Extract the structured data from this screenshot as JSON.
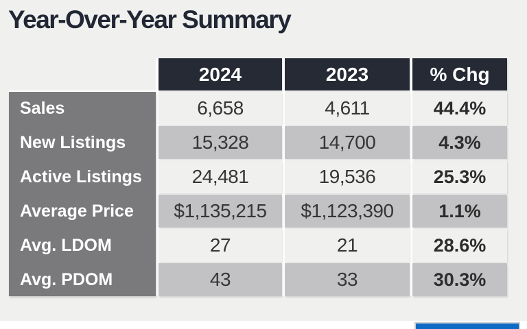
{
  "title": "Year-Over-Year Summary",
  "colors": {
    "page_background": "#ffffff",
    "slide_background": "#f0f0ef",
    "title_text": "#212734",
    "header_background": "#262a35",
    "header_text": "#ffffff",
    "label_background": "#7a797c",
    "label_text": "#ffffff",
    "row_light": "#f0f0ef",
    "row_silver": "#c2c1c3",
    "value_text": "#363636",
    "pct_text": "#2d2d2d",
    "accent_bar": "#0e6bc5"
  },
  "table": {
    "column_headers": [
      "2024",
      "2023",
      "% Chg"
    ],
    "rows": [
      {
        "label": "Sales",
        "values": [
          "6,658",
          "4,611",
          "44.4%"
        ]
      },
      {
        "label": "New Listings",
        "values": [
          "15,328",
          "14,700",
          "4.3%"
        ]
      },
      {
        "label": "Active Listings",
        "values": [
          "24,481",
          "19,536",
          "25.3%"
        ]
      },
      {
        "label": "Average Price",
        "values": [
          "$1,135,215",
          "$1,123,390",
          "1.1%"
        ]
      },
      {
        "label": "Avg. LDOM",
        "values": [
          "27",
          "21",
          "28.6%"
        ]
      },
      {
        "label": "Avg. PDOM",
        "values": [
          "43",
          "33",
          "30.3%"
        ]
      }
    ]
  },
  "chart_data": {
    "type": "table",
    "title": "Year-Over-Year Summary",
    "columns": [
      "",
      "2024",
      "2023",
      "% Chg"
    ],
    "rows": [
      [
        "Sales",
        "6,658",
        "4,611",
        "44.4%"
      ],
      [
        "New Listings",
        "15,328",
        "14,700",
        "4.3%"
      ],
      [
        "Active Listings",
        "24,481",
        "19,536",
        "25.3%"
      ],
      [
        "Average Price",
        "$1,135,215",
        "$1,123,390",
        "1.1%"
      ],
      [
        "Avg. LDOM",
        "27",
        "21",
        "28.6%"
      ],
      [
        "Avg. PDOM",
        "43",
        "33",
        "30.3%"
      ]
    ]
  }
}
